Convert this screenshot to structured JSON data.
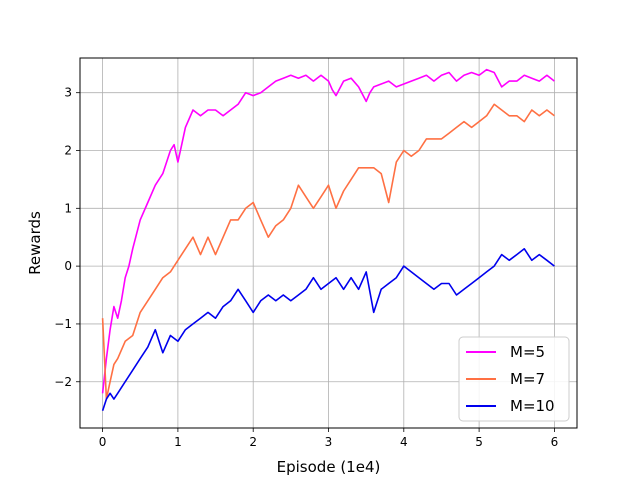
{
  "chart_data": {
    "type": "line",
    "xlabel": "Episode (1e4)",
    "ylabel": "Rewards",
    "xlim": [
      -0.3,
      6.3
    ],
    "ylim": [
      -2.8,
      3.6
    ],
    "xticks": [
      0,
      1,
      2,
      3,
      4,
      5,
      6
    ],
    "yticks": [
      -2,
      -1,
      0,
      1,
      2,
      3
    ],
    "xtick_labels": [
      "0",
      "1",
      "2",
      "3",
      "4",
      "5",
      "6"
    ],
    "ytick_labels": [
      "−2",
      "−1",
      "0",
      "1",
      "2",
      "3"
    ],
    "grid": true,
    "legend_position": "bottom-right",
    "series": [
      {
        "name": "M=5",
        "color": "#ff00ff",
        "x": [
          0,
          0.05,
          0.1,
          0.15,
          0.2,
          0.25,
          0.3,
          0.35,
          0.4,
          0.5,
          0.6,
          0.7,
          0.8,
          0.9,
          0.95,
          1.0,
          1.05,
          1.1,
          1.2,
          1.3,
          1.4,
          1.5,
          1.6,
          1.7,
          1.8,
          1.9,
          2.0,
          2.1,
          2.2,
          2.3,
          2.4,
          2.5,
          2.6,
          2.7,
          2.8,
          2.9,
          3.0,
          3.05,
          3.1,
          3.2,
          3.3,
          3.4,
          3.5,
          3.55,
          3.6,
          3.7,
          3.8,
          3.9,
          4.0,
          4.1,
          4.2,
          4.3,
          4.4,
          4.5,
          4.6,
          4.7,
          4.8,
          4.9,
          5.0,
          5.1,
          5.2,
          5.3,
          5.4,
          5.5,
          5.6,
          5.7,
          5.8,
          5.9,
          6.0
        ],
        "y": [
          -2.2,
          -1.6,
          -1.1,
          -0.7,
          -0.9,
          -0.6,
          -0.2,
          0.0,
          0.3,
          0.8,
          1.1,
          1.4,
          1.6,
          2.0,
          2.1,
          1.8,
          2.1,
          2.4,
          2.7,
          2.6,
          2.7,
          2.7,
          2.6,
          2.7,
          2.8,
          3.0,
          2.95,
          3.0,
          3.1,
          3.2,
          3.25,
          3.3,
          3.25,
          3.3,
          3.2,
          3.3,
          3.2,
          3.05,
          2.95,
          3.2,
          3.25,
          3.1,
          2.85,
          3.0,
          3.1,
          3.15,
          3.2,
          3.1,
          3.15,
          3.2,
          3.25,
          3.3,
          3.2,
          3.3,
          3.35,
          3.2,
          3.3,
          3.35,
          3.3,
          3.4,
          3.35,
          3.1,
          3.2,
          3.2,
          3.3,
          3.25,
          3.2,
          3.3,
          3.2
        ]
      },
      {
        "name": "M=7",
        "color": "#ff7043",
        "x": [
          0,
          0.05,
          0.1,
          0.15,
          0.2,
          0.3,
          0.4,
          0.5,
          0.6,
          0.7,
          0.8,
          0.9,
          1.0,
          1.1,
          1.2,
          1.3,
          1.4,
          1.5,
          1.6,
          1.7,
          1.8,
          1.9,
          2.0,
          2.1,
          2.2,
          2.3,
          2.4,
          2.5,
          2.6,
          2.7,
          2.8,
          2.9,
          3.0,
          3.1,
          3.2,
          3.3,
          3.4,
          3.5,
          3.6,
          3.7,
          3.8,
          3.9,
          4.0,
          4.1,
          4.2,
          4.3,
          4.4,
          4.5,
          4.6,
          4.7,
          4.8,
          4.9,
          5.0,
          5.1,
          5.2,
          5.3,
          5.4,
          5.5,
          5.6,
          5.7,
          5.8,
          5.9,
          6.0
        ],
        "y": [
          -0.9,
          -2.3,
          -2.0,
          -1.7,
          -1.6,
          -1.3,
          -1.2,
          -0.8,
          -0.6,
          -0.4,
          -0.2,
          -0.1,
          0.1,
          0.3,
          0.5,
          0.2,
          0.5,
          0.2,
          0.5,
          0.8,
          0.8,
          1.0,
          1.1,
          0.8,
          0.5,
          0.7,
          0.8,
          1.0,
          1.4,
          1.2,
          1.0,
          1.2,
          1.4,
          1.0,
          1.3,
          1.5,
          1.7,
          1.7,
          1.7,
          1.6,
          1.1,
          1.8,
          2.0,
          1.9,
          2.0,
          2.2,
          2.2,
          2.2,
          2.3,
          2.4,
          2.5,
          2.4,
          2.5,
          2.6,
          2.8,
          2.7,
          2.6,
          2.6,
          2.5,
          2.7,
          2.6,
          2.7,
          2.6
        ]
      },
      {
        "name": "M=10",
        "color": "#0000ee",
        "x": [
          0,
          0.05,
          0.1,
          0.15,
          0.2,
          0.3,
          0.4,
          0.5,
          0.6,
          0.7,
          0.8,
          0.9,
          1.0,
          1.1,
          1.2,
          1.3,
          1.4,
          1.5,
          1.6,
          1.7,
          1.8,
          1.9,
          2.0,
          2.1,
          2.2,
          2.3,
          2.4,
          2.5,
          2.6,
          2.7,
          2.8,
          2.9,
          3.0,
          3.1,
          3.2,
          3.3,
          3.4,
          3.5,
          3.6,
          3.7,
          3.8,
          3.9,
          4.0,
          4.1,
          4.2,
          4.3,
          4.4,
          4.5,
          4.6,
          4.7,
          4.8,
          4.9,
          5.0,
          5.1,
          5.2,
          5.3,
          5.4,
          5.5,
          5.6,
          5.7,
          5.8,
          5.9,
          6.0
        ],
        "y": [
          -2.5,
          -2.3,
          -2.2,
          -2.3,
          -2.2,
          -2.0,
          -1.8,
          -1.6,
          -1.4,
          -1.1,
          -1.5,
          -1.2,
          -1.3,
          -1.1,
          -1.0,
          -0.9,
          -0.8,
          -0.9,
          -0.7,
          -0.6,
          -0.4,
          -0.6,
          -0.8,
          -0.6,
          -0.5,
          -0.6,
          -0.5,
          -0.6,
          -0.5,
          -0.4,
          -0.2,
          -0.4,
          -0.3,
          -0.2,
          -0.4,
          -0.2,
          -0.4,
          -0.1,
          -0.8,
          -0.4,
          -0.3,
          -0.2,
          0.0,
          -0.1,
          -0.2,
          -0.3,
          -0.4,
          -0.3,
          -0.3,
          -0.5,
          -0.4,
          -0.3,
          -0.2,
          -0.1,
          0.0,
          0.2,
          0.1,
          0.2,
          0.3,
          0.1,
          0.2,
          0.1,
          0.0
        ]
      }
    ]
  }
}
